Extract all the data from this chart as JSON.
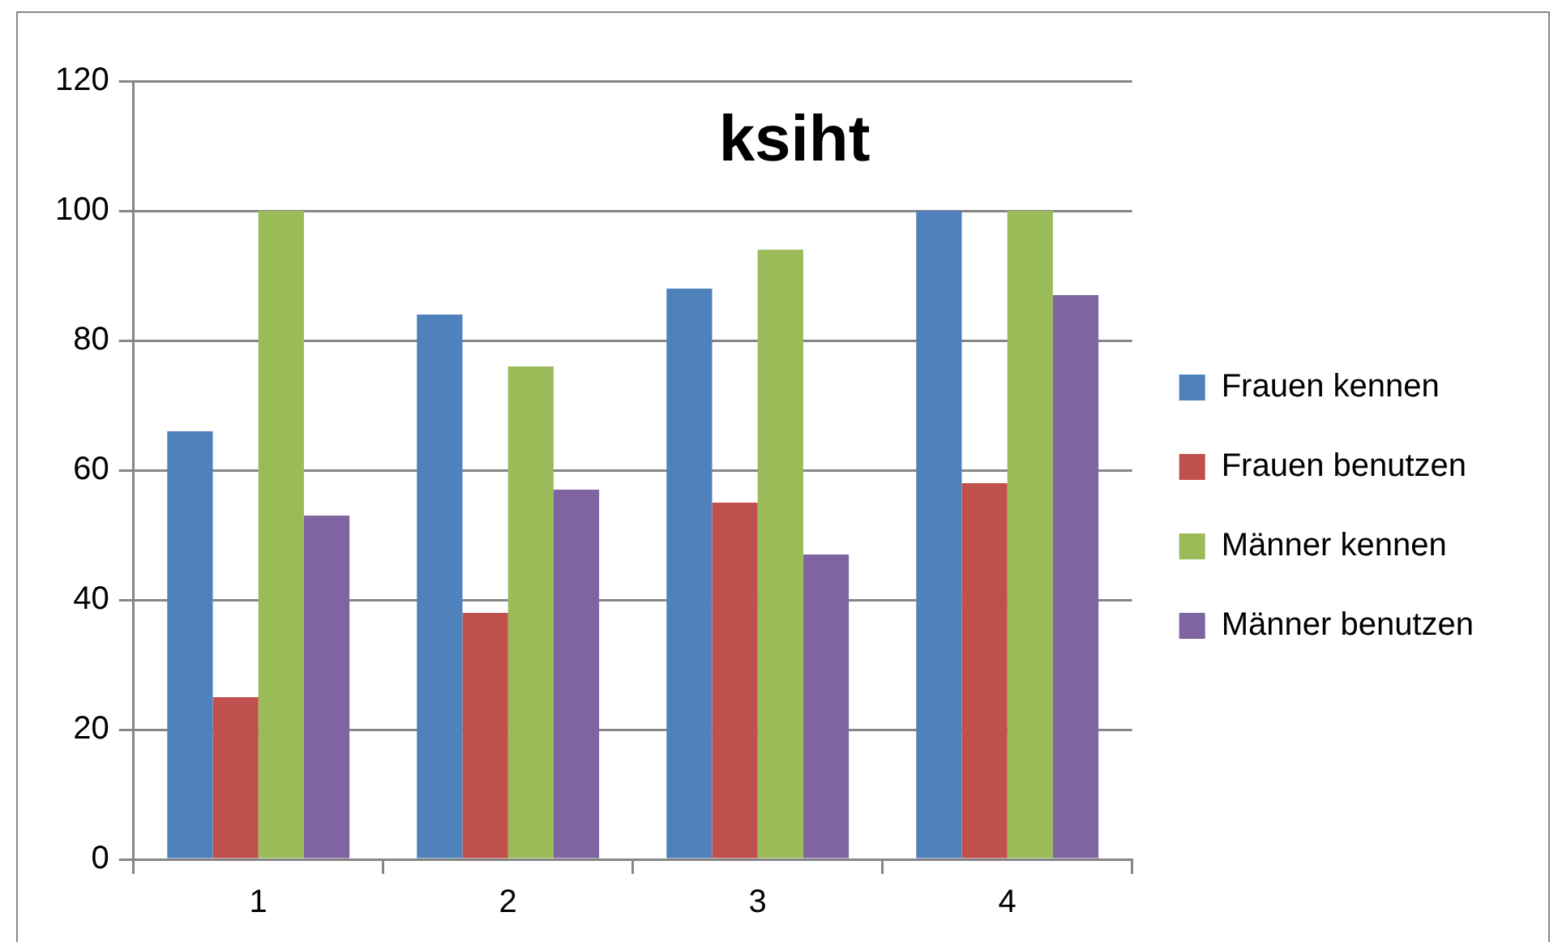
{
  "chart_data": {
    "type": "bar",
    "title": "ksiht",
    "categories": [
      "1",
      "2",
      "3",
      "4"
    ],
    "series": [
      {
        "name": "Frauen kennen",
        "color": "#4f81bd",
        "values": [
          66,
          84,
          88,
          100
        ]
      },
      {
        "name": "Frauen benutzen",
        "color": "#c0504d",
        "values": [
          25,
          38,
          55,
          58
        ]
      },
      {
        "name": "Männer kennen",
        "color": "#9bbb59",
        "values": [
          100,
          76,
          94,
          100
        ]
      },
      {
        "name": "Männer benutzen",
        "color": "#8064a2",
        "values": [
          53,
          57,
          47,
          87
        ]
      }
    ],
    "ylim": [
      0,
      120
    ],
    "yticks": [
      0,
      20,
      40,
      60,
      80,
      100,
      120
    ],
    "grid": "y",
    "legend": "right"
  }
}
